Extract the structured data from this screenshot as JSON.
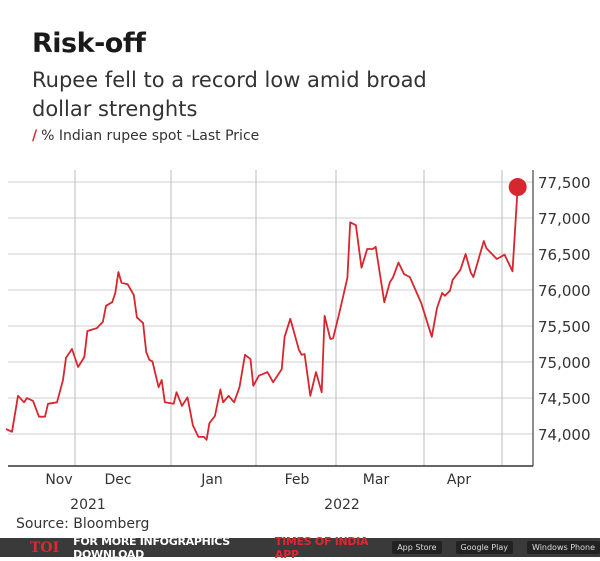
{
  "header": {
    "title": "Risk-off",
    "subtitle": "Rupee fell to a record low amid broad dollar strenghts",
    "legend_label": "% Indian rupee spot -Last Price",
    "legend_marker": "/"
  },
  "source": "Source: Bloomberg",
  "footer": {
    "logo": "TOI",
    "text": "FOR MORE  INFOGRAPHICS DOWNLOAD",
    "app": "TIMES OF INDIA  APP",
    "badges": [
      "App Store",
      "Google Play",
      "Windows Phone"
    ]
  },
  "chart_data": {
    "type": "line",
    "title": "Risk-off",
    "series_color": "#d7262e",
    "grid": true,
    "y_axis_position": "right",
    "ylim": [
      73500,
      77700
    ],
    "y_ticks": [
      74000,
      74500,
      75000,
      75500,
      76000,
      76500,
      77000,
      77500
    ],
    "y_tick_labels": [
      "74,000",
      "74,500",
      "75,000",
      "75,500",
      "76,000",
      "76,500",
      "77,000",
      "77,500"
    ],
    "x_tick_labels": [
      "Nov",
      "Dec",
      "Jan",
      "Feb",
      "Mar",
      "Apr"
    ],
    "x_year_labels": [
      "2021",
      "2022"
    ],
    "highlight_last_point": true,
    "series": [
      {
        "points": [
          [
            "2021-11-08",
            74070
          ],
          [
            "2021-11-10",
            74030
          ],
          [
            "2021-11-12",
            74530
          ],
          [
            "2021-11-14",
            74440
          ],
          [
            "2021-11-15",
            74500
          ],
          [
            "2021-11-17",
            74460
          ],
          [
            "2021-11-19",
            74240
          ],
          [
            "2021-11-21",
            74240
          ],
          [
            "2021-11-22",
            74420
          ],
          [
            "2021-11-25",
            74440
          ],
          [
            "2021-11-27",
            74750
          ],
          [
            "2021-11-28",
            75060
          ],
          [
            "2021-11-30",
            75180
          ],
          [
            "2021-12-02",
            74930
          ],
          [
            "2021-12-04",
            75070
          ],
          [
            "2021-12-05",
            75430
          ],
          [
            "2021-12-08",
            75470
          ],
          [
            "2021-12-10",
            75560
          ],
          [
            "2021-12-11",
            75780
          ],
          [
            "2021-12-13",
            75830
          ],
          [
            "2021-12-14",
            75960
          ],
          [
            "2021-12-15",
            76250
          ],
          [
            "2021-12-16",
            76100
          ],
          [
            "2021-12-18",
            76080
          ],
          [
            "2021-12-20",
            75930
          ],
          [
            "2021-12-21",
            75620
          ],
          [
            "2021-12-23",
            75540
          ],
          [
            "2021-12-24",
            75140
          ],
          [
            "2021-12-25",
            75030
          ],
          [
            "2021-12-26",
            75010
          ],
          [
            "2021-12-28",
            74650
          ],
          [
            "2021-12-29",
            74750
          ],
          [
            "2021-12-30",
            74440
          ],
          [
            "2022-01-02",
            74420
          ],
          [
            "2022-01-03",
            74580
          ],
          [
            "2022-01-05",
            74390
          ],
          [
            "2022-01-07",
            74510
          ],
          [
            "2022-01-09",
            74120
          ],
          [
            "2022-01-11",
            73960
          ],
          [
            "2022-01-13",
            73960
          ],
          [
            "2022-01-14",
            73920
          ],
          [
            "2022-01-15",
            74150
          ],
          [
            "2022-01-17",
            74250
          ],
          [
            "2022-01-19",
            74620
          ],
          [
            "2022-01-20",
            74440
          ],
          [
            "2022-01-22",
            74530
          ],
          [
            "2022-01-24",
            74440
          ],
          [
            "2022-01-26",
            74650
          ],
          [
            "2022-01-28",
            75100
          ],
          [
            "2022-01-30",
            75040
          ],
          [
            "2022-01-31",
            74670
          ],
          [
            "2022-02-02",
            74810
          ],
          [
            "2022-02-05",
            74860
          ],
          [
            "2022-02-07",
            74720
          ],
          [
            "2022-02-10",
            74900
          ],
          [
            "2022-02-11",
            75350
          ],
          [
            "2022-02-13",
            75600
          ],
          [
            "2022-02-16",
            75170
          ],
          [
            "2022-02-17",
            75100
          ],
          [
            "2022-02-18",
            75110
          ],
          [
            "2022-02-20",
            74530
          ],
          [
            "2022-02-22",
            74860
          ],
          [
            "2022-02-24",
            74580
          ],
          [
            "2022-02-25",
            75640
          ],
          [
            "2022-02-27",
            75320
          ],
          [
            "2022-02-28",
            75330
          ],
          [
            "2022-03-02",
            75650
          ],
          [
            "2022-03-05",
            76170
          ],
          [
            "2022-03-06",
            76940
          ],
          [
            "2022-03-08",
            76900
          ],
          [
            "2022-03-10",
            76310
          ],
          [
            "2022-03-12",
            76570
          ],
          [
            "2022-03-14",
            76570
          ],
          [
            "2022-03-15",
            76600
          ],
          [
            "2022-03-18",
            75830
          ],
          [
            "2022-03-20",
            76110
          ],
          [
            "2022-03-21",
            76170
          ],
          [
            "2022-03-23",
            76380
          ],
          [
            "2022-03-25",
            76220
          ],
          [
            "2022-03-27",
            76180
          ],
          [
            "2022-03-31",
            75820
          ],
          [
            "2022-04-04",
            75350
          ],
          [
            "2022-04-06",
            75750
          ],
          [
            "2022-04-08",
            75960
          ],
          [
            "2022-04-09",
            75920
          ],
          [
            "2022-04-11",
            75990
          ],
          [
            "2022-04-12",
            76140
          ],
          [
            "2022-04-15",
            76280
          ],
          [
            "2022-04-17",
            76500
          ],
          [
            "2022-04-19",
            76240
          ],
          [
            "2022-04-20",
            76180
          ],
          [
            "2022-04-24",
            76680
          ],
          [
            "2022-04-25",
            76580
          ],
          [
            "2022-04-29",
            76430
          ],
          [
            "2022-05-02",
            76490
          ],
          [
            "2022-05-05",
            76260
          ],
          [
            "2022-05-07",
            77430
          ]
        ]
      }
    ]
  }
}
